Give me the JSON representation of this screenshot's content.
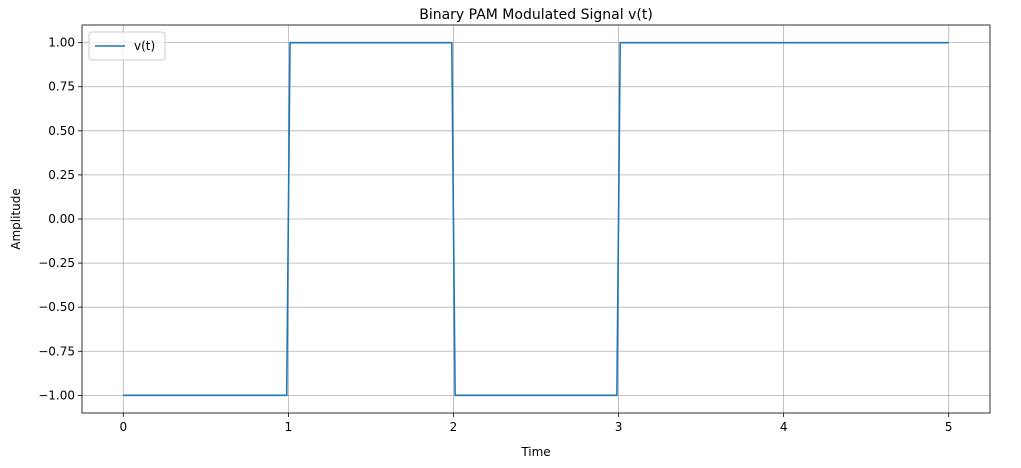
{
  "chart_data": {
    "type": "line",
    "title": "Binary PAM Modulated Signal v(t)",
    "xlabel": "Time",
    "ylabel": "Amplitude",
    "xlim": [
      -0.25,
      5.25
    ],
    "ylim": [
      -1.1,
      1.1
    ],
    "x_ticks": [
      0,
      1,
      2,
      3,
      4,
      5
    ],
    "x_tick_labels": [
      "0",
      "1",
      "2",
      "3",
      "4",
      "5"
    ],
    "y_ticks": [
      1.0,
      0.75,
      0.5,
      0.25,
      0.0,
      -0.25,
      -0.5,
      -0.75,
      -1.0
    ],
    "y_tick_labels": [
      "1.00",
      "0.75",
      "0.50",
      "0.25",
      "0.00",
      "−0.25",
      "−0.50",
      "−0.75",
      "−1.00"
    ],
    "grid": true,
    "legend_position": "top-left",
    "series": [
      {
        "name": "v(t)",
        "color": "#1f77b4",
        "x": [
          0,
          0.99,
          1.01,
          1.99,
          2.01,
          2.99,
          3.01,
          5
        ],
        "y": [
          -1,
          -1,
          1,
          1,
          -1,
          -1,
          1,
          1
        ]
      }
    ]
  }
}
